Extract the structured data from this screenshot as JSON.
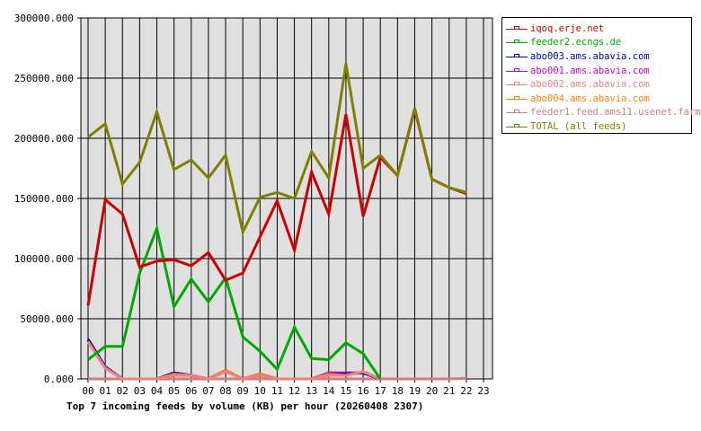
{
  "chart_data": {
    "type": "line",
    "title": "Top 7 incoming feeds by volume (KB) per hour (20260408 2307)",
    "xlabel": "",
    "ylabel": "",
    "ylim": [
      0,
      300000
    ],
    "yticks": [
      "0.000",
      "50000.000",
      "100000.000",
      "150000.000",
      "200000.000",
      "250000.000",
      "300000.000"
    ],
    "grid": true,
    "legend_position": "right",
    "categories": [
      "00",
      "01",
      "02",
      "03",
      "04",
      "05",
      "06",
      "07",
      "08",
      "09",
      "10",
      "11",
      "12",
      "13",
      "14",
      "15",
      "16",
      "17",
      "18",
      "19",
      "20",
      "21",
      "22",
      "23"
    ],
    "series": [
      {
        "name": "iqoq.erje.net",
        "color": "#cc0000",
        "values": [
          61000,
          149000,
          137000,
          93000,
          98000,
          99000,
          94000,
          105000,
          82000,
          88000,
          118000,
          148000,
          107000,
          172000,
          137000,
          220000,
          135000,
          184000,
          169000,
          224000,
          166000,
          159000,
          154000,
          null
        ]
      },
      {
        "name": "feeder2.ecngs.de",
        "color": "#00aa00",
        "values": [
          16000,
          27000,
          27000,
          88000,
          125000,
          60000,
          83000,
          64000,
          84000,
          35000,
          23000,
          8000,
          43000,
          17000,
          16000,
          30000,
          21000,
          0,
          null,
          null,
          null,
          null,
          null,
          null
        ]
      },
      {
        "name": "abo003.ams.abavia.com",
        "color": "#0000aa",
        "values": [
          33000,
          10000,
          0,
          0,
          0,
          5000,
          3000,
          0,
          7000,
          0,
          4000,
          0,
          0,
          0,
          4000,
          4000,
          5000,
          0,
          null,
          null,
          null,
          null,
          null,
          null
        ]
      },
      {
        "name": "abo001.ams.abavia.com",
        "color": "#cc00cc",
        "values": [
          32000,
          10000,
          0,
          0,
          0,
          5000,
          3000,
          0,
          7000,
          0,
          3000,
          0,
          0,
          0,
          5000,
          5000,
          5000,
          0,
          null,
          null,
          null,
          null,
          null,
          null
        ]
      },
      {
        "name": "abo002.ams.abavia.com",
        "color": "#f08080",
        "values": [
          31000,
          9000,
          0,
          0,
          0,
          3000,
          3000,
          0,
          6000,
          0,
          3000,
          0,
          0,
          0,
          3000,
          3000,
          6000,
          0,
          null,
          null,
          null,
          null,
          null,
          null
        ]
      },
      {
        "name": "abo004.ams.abavia.com",
        "color": "#ff8000",
        "values": [
          31000,
          9000,
          0,
          0,
          0,
          4000,
          3000,
          0,
          7000,
          0,
          4000,
          0,
          0,
          0,
          4000,
          3000,
          6000,
          0,
          null,
          null,
          null,
          null,
          null,
          null
        ]
      },
      {
        "name": "feeder1.feed.ams11.usenet.farm",
        "color": "#cc8080",
        "values": [
          0,
          0,
          0,
          0,
          0,
          0,
          0,
          0,
          0,
          0,
          0,
          0,
          0,
          0,
          0,
          0,
          0,
          0,
          0,
          0,
          0,
          0,
          500,
          null
        ]
      },
      {
        "name": "TOTAL (all feeds)",
        "color": "#808000",
        "values": [
          201000,
          212000,
          162000,
          180000,
          222000,
          174000,
          182000,
          167000,
          186000,
          122000,
          151000,
          155000,
          150000,
          189000,
          167000,
          262000,
          175000,
          186000,
          169000,
          225000,
          166000,
          159000,
          155000,
          null
        ]
      }
    ]
  }
}
